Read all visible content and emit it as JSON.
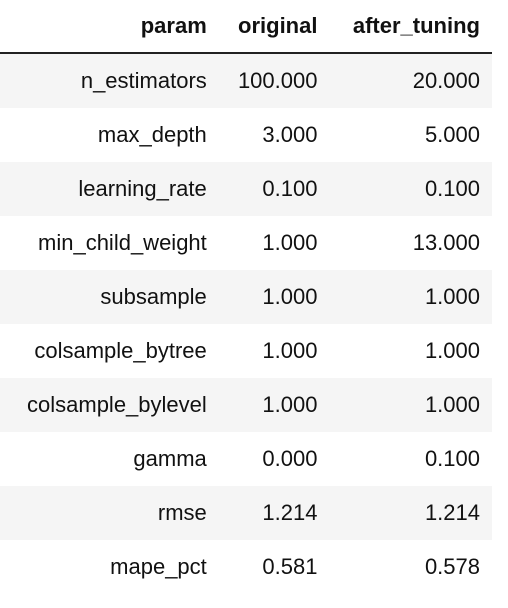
{
  "table": {
    "columns": [
      "param",
      "original",
      "after_tuning"
    ],
    "rows": [
      {
        "param": "n_estimators",
        "original": "100.000",
        "after_tuning": "20.000"
      },
      {
        "param": "max_depth",
        "original": "3.000",
        "after_tuning": "5.000"
      },
      {
        "param": "learning_rate",
        "original": "0.100",
        "after_tuning": "0.100"
      },
      {
        "param": "min_child_weight",
        "original": "1.000",
        "after_tuning": "13.000"
      },
      {
        "param": "subsample",
        "original": "1.000",
        "after_tuning": "1.000"
      },
      {
        "param": "colsample_bytree",
        "original": "1.000",
        "after_tuning": "1.000"
      },
      {
        "param": "colsample_bylevel",
        "original": "1.000",
        "after_tuning": "1.000"
      },
      {
        "param": "gamma",
        "original": "0.000",
        "after_tuning": "0.100"
      },
      {
        "param": "rmse",
        "original": "1.214",
        "after_tuning": "1.214"
      },
      {
        "param": "mape_pct",
        "original": "0.581",
        "after_tuning": "0.578"
      }
    ]
  }
}
